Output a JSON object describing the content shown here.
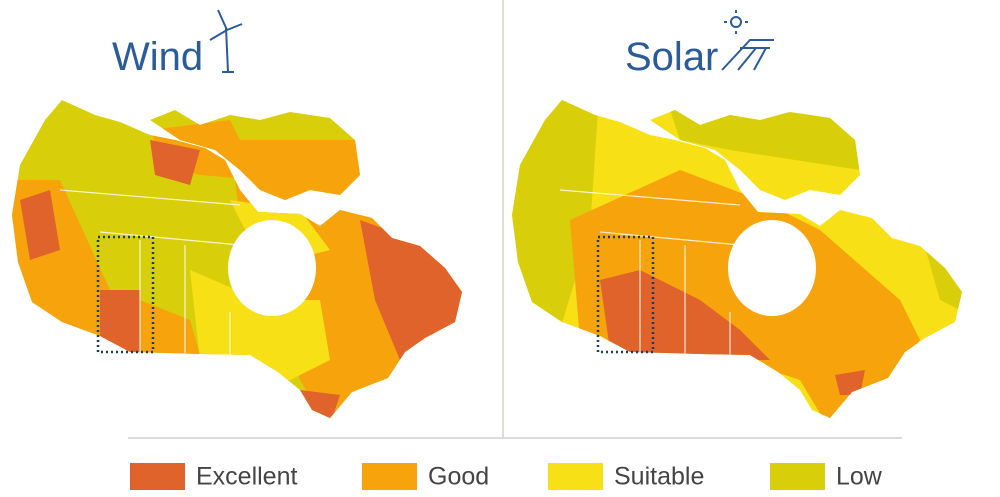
{
  "panels": [
    {
      "title": "Wind"
    },
    {
      "title": "Solar"
    }
  ],
  "legend": [
    {
      "label": "Excellent",
      "color": "#e0632b"
    },
    {
      "label": "Good",
      "color": "#f7a30c"
    },
    {
      "label": "Suitable",
      "color": "#f8e016"
    },
    {
      "label": "Low",
      "color": "#d8cf0a"
    }
  ]
}
